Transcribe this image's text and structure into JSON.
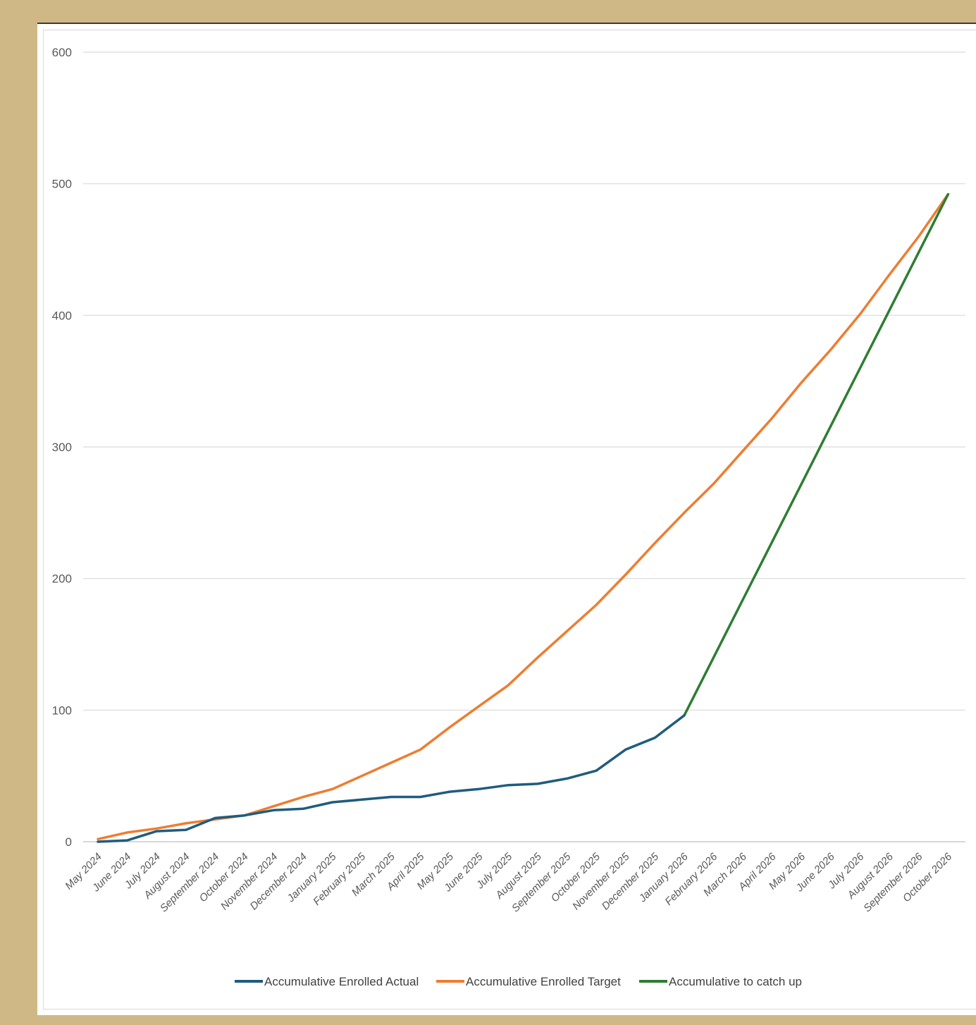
{
  "chart_data": {
    "type": "line",
    "title": "",
    "xlabel": "",
    "ylabel": "",
    "ylim": [
      0,
      600
    ],
    "yticks": [
      0,
      100,
      200,
      300,
      400,
      500,
      600
    ],
    "grid": true,
    "legend_position": "bottom",
    "categories": [
      "May 2024",
      "June 2024",
      "July 2024",
      "August 2024",
      "September 2024",
      "October 2024",
      "November 2024",
      "December 2024",
      "January 2025",
      "February 2025",
      "March 2025",
      "April 2025",
      "May 2025",
      "June 2025",
      "July 2025",
      "August 2025",
      "September 2025",
      "October 2025",
      "November 2025",
      "December 2025",
      "January 2026",
      "February 2026",
      "March 2026",
      "April 2026",
      "May 2026",
      "June 2026",
      "July 2026",
      "August 2026",
      "September 2026",
      "October 2026"
    ],
    "series": [
      {
        "name": "Accumulative Enrolled Actual",
        "color": "#1f5c7f",
        "values": [
          0,
          1,
          8,
          9,
          18,
          20,
          24,
          25,
          30,
          32,
          34,
          34,
          38,
          40,
          43,
          44,
          48,
          54,
          70,
          79,
          96,
          null,
          null,
          null,
          null,
          null,
          null,
          null,
          null,
          null
        ]
      },
      {
        "name": "Accumulative Enrolled Target",
        "color": "#ed7d31",
        "values": [
          2,
          7,
          10,
          14,
          17,
          20,
          27,
          34,
          40,
          50,
          60,
          70,
          87,
          103,
          119,
          140,
          160,
          180,
          203,
          227,
          250,
          272,
          297,
          322,
          349,
          374,
          401,
          431,
          460,
          492
        ]
      },
      {
        "name": "Accumulative to catch up",
        "color": "#2e7d32",
        "values": [
          null,
          null,
          null,
          null,
          null,
          null,
          null,
          null,
          null,
          null,
          null,
          null,
          null,
          null,
          null,
          null,
          null,
          null,
          null,
          null,
          96,
          140,
          184,
          228,
          272,
          316,
          360,
          404,
          448,
          492
        ]
      }
    ]
  }
}
